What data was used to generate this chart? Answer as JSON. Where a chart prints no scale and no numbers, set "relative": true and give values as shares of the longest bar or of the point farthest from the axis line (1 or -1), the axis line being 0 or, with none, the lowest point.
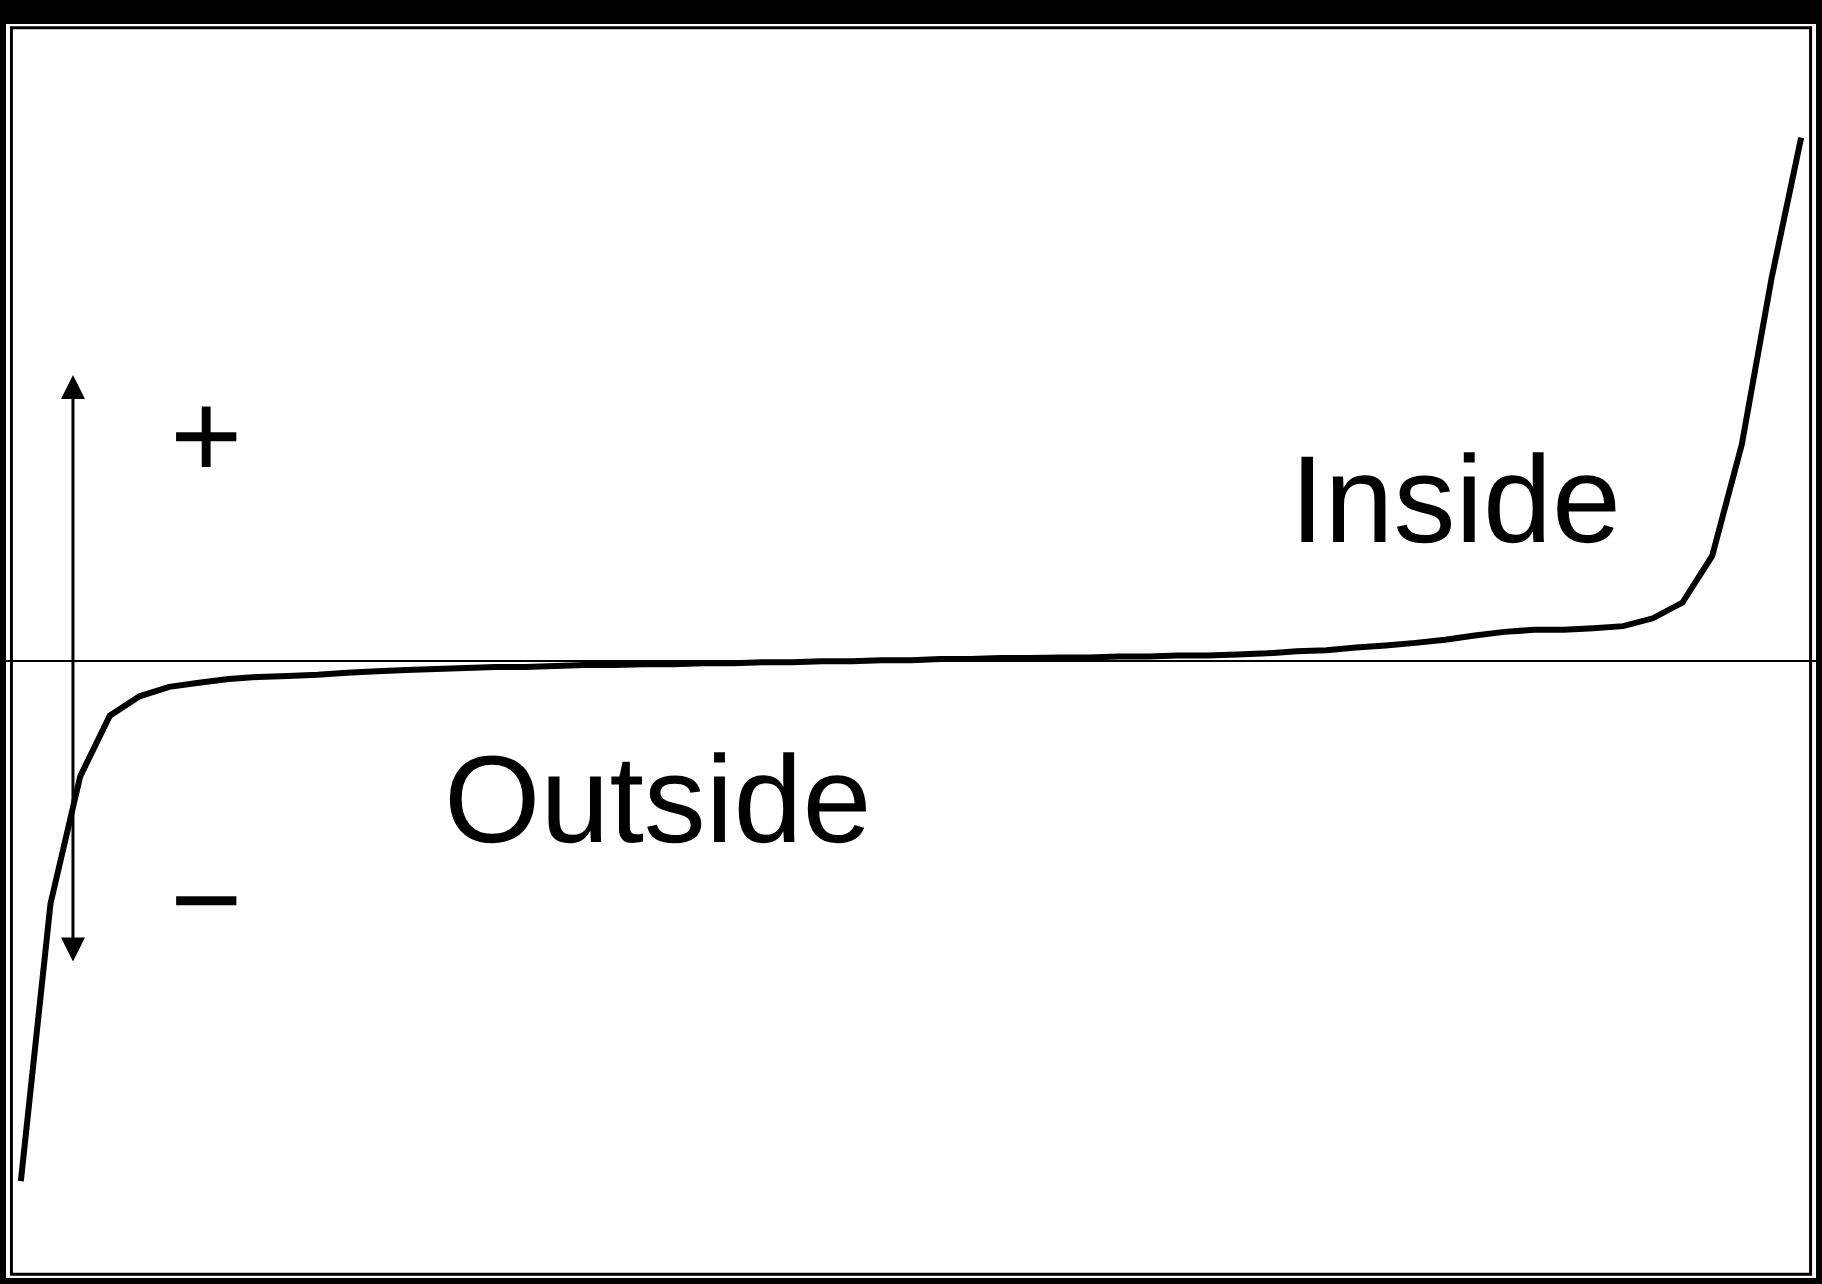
{
  "chart_data": {
    "type": "line",
    "relative": true,
    "color": "#000000",
    "marker": "none",
    "line_style": "solid",
    "categories": [
      null,
      null,
      null,
      null,
      null,
      null,
      null,
      null,
      null,
      null,
      null,
      null,
      null,
      null,
      null,
      null,
      null,
      null,
      null,
      null,
      null,
      null,
      null,
      null,
      null,
      null,
      null,
      null,
      null,
      null,
      null,
      null,
      null,
      null,
      null,
      null,
      null,
      null,
      null,
      null,
      null,
      null,
      null,
      null,
      null,
      null,
      null,
      null,
      null,
      null,
      null,
      null,
      null,
      null,
      null,
      null,
      null,
      null,
      null,
      null,
      null
    ],
    "values": [
      -0.993,
      -0.463,
      -0.22,
      -0.104,
      -0.067,
      -0.049,
      -0.041,
      -0.034,
      -0.03,
      -0.028,
      -0.026,
      -0.022,
      -0.019,
      -0.017,
      -0.015,
      -0.013,
      -0.011,
      -0.011,
      -0.009,
      -0.007,
      -0.007,
      -0.006,
      -0.006,
      -0.004,
      -0.004,
      -0.002,
      -0.002,
      0,
      0,
      0.002,
      0.002,
      0.004,
      0.004,
      0.006,
      0.006,
      0.007,
      0.007,
      0.009,
      0.009,
      0.011,
      0.011,
      0.013,
      0.015,
      0.019,
      0.021,
      0.026,
      0.03,
      0.035,
      0.041,
      0.049,
      0.056,
      0.06,
      0.06,
      0.063,
      0.067,
      0.082,
      0.112,
      0.201,
      0.414,
      0.731,
      1.0
    ],
    "annotations": [
      "+",
      "−",
      "Inside",
      "Outside"
    ]
  }
}
